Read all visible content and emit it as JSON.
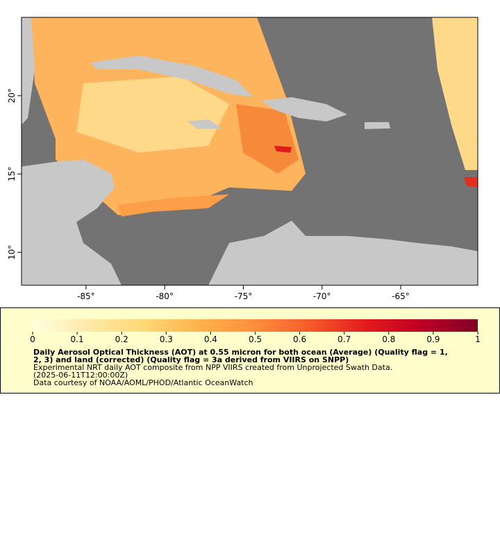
{
  "map": {
    "xlim": [
      -89.1,
      -60.1
    ],
    "ylim": [
      7.9,
      25.0
    ],
    "xticks": [
      {
        "value": -85,
        "label": "-85°"
      },
      {
        "value": -80,
        "label": "-80°"
      },
      {
        "value": -75,
        "label": "-75°"
      },
      {
        "value": -70,
        "label": "-70°"
      },
      {
        "value": -65,
        "label": "-65°"
      }
    ],
    "yticks": [
      {
        "value": 10,
        "label": "10°"
      },
      {
        "value": 15,
        "label": "15°"
      },
      {
        "value": 20,
        "label": "20°"
      }
    ]
  },
  "colorbar": {
    "lim": [
      0,
      1
    ],
    "ticks": [
      0,
      0.1,
      0.2,
      0.3,
      0.4,
      0.5,
      0.6,
      0.7,
      0.8,
      0.9,
      1
    ],
    "colormap": [
      "#ffffe0",
      "#fee9a8",
      "#fed976",
      "#feb24c",
      "#fd8d3c",
      "#f45a2a",
      "#e31a1c",
      "#bd0026",
      "#800026"
    ]
  },
  "legend": {
    "title_lines": [
      "Daily Aerosol Optical Thickness (AOT) at 0.55 micron for both ocean (Average) (Quality flag = 1,",
      "2, 3) and land (corrected) (Quality flag = 3a derived from VIIRS on SNPP)"
    ],
    "lines": [
      "Experimental NRT daily AOT composite from NPP VIIRS created from Unprojected Swath Data.",
      "(2025-06-11T12:00:00Z)",
      "Data courtesy of NOAA/AOML/PHOD/Atlantic OceanWatch"
    ]
  }
}
